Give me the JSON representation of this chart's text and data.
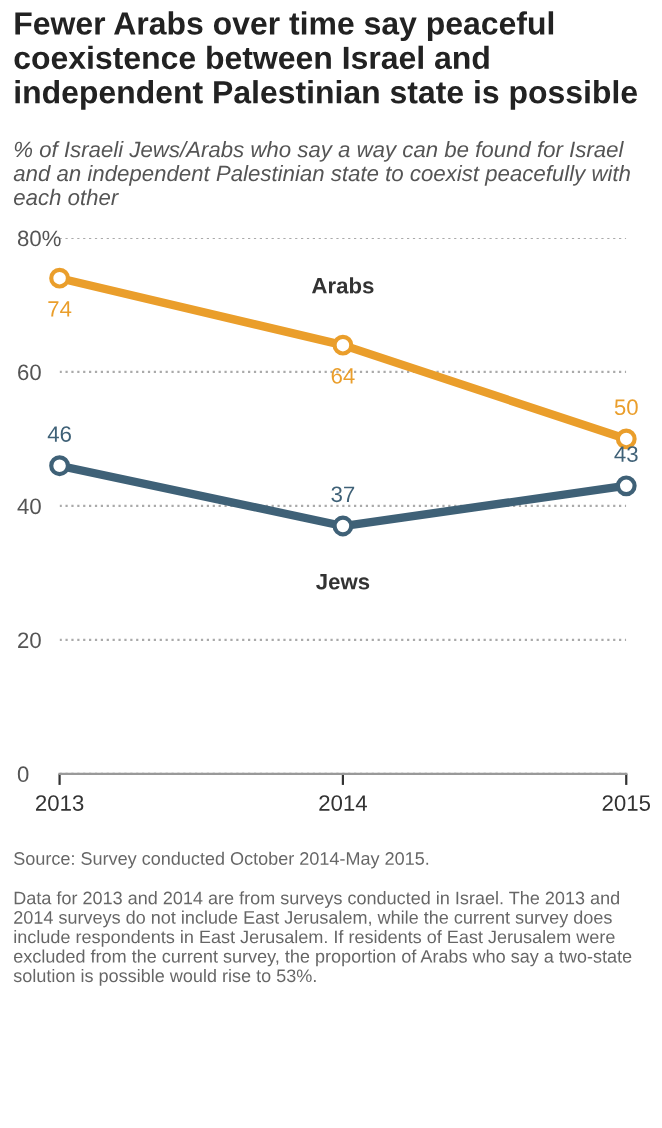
{
  "chart_data": {
    "type": "line",
    "title": "Fewer Arabs over time say peaceful coexistence between Israel and independent Palestinian state is possible",
    "subtitle": "% of Israeli Jews/Arabs who say a way can be found for Israel and an independent Palestinian state to coexist peacefully with each other",
    "x": [
      2013,
      2014,
      2015
    ],
    "series": [
      {
        "name": "Arabs",
        "color": "#ea9e2b",
        "values": [
          74,
          64,
          50
        ]
      },
      {
        "name": "Jews",
        "color": "#3f6177",
        "values": [
          46,
          37,
          43
        ]
      }
    ],
    "xlim": [
      2013,
      2015
    ],
    "xticks": [
      2013,
      2014,
      2015
    ],
    "ylim": [
      0,
      80
    ],
    "yticks": [
      0,
      20,
      40,
      60,
      {
        "value": 80,
        "label": "80%"
      }
    ],
    "grid": "y",
    "marker": "circle",
    "line_style": "solid",
    "data_labels": true,
    "legend": false,
    "annotations": [
      "Source: Survey conducted October 2014-May 2015.",
      "Data for 2013 and 2014 are from surveys conducted in Israel. The 2013 and 2014 surveys do not include East Jerusalem, while the current survey does include respondents in East Jerusalem. If residents of East Jerusalem were excluded from the current survey, the proportion of Arabs who say a two-state solution is possible would rise to 53%."
    ]
  }
}
